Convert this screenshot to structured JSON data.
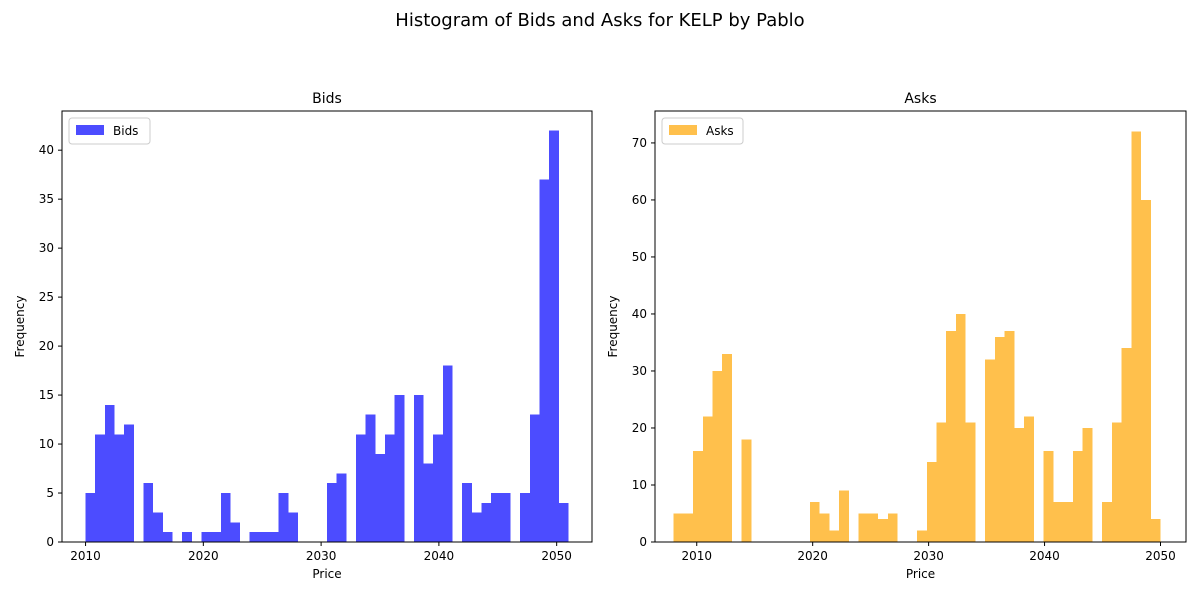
{
  "figure": {
    "suptitle": "Histogram of Bids and Asks for KELP by Pablo"
  },
  "chart_data": [
    {
      "type": "histogram",
      "title": "Bids",
      "xlabel": "Price",
      "ylabel": "Frequency",
      "legend": {
        "label": "Bids",
        "placement": "top-left"
      },
      "color": "#0000ff",
      "opacity": 0.7,
      "xlim": [
        2008,
        2053
      ],
      "ylim": [
        0,
        44
      ],
      "xticks": [
        2010,
        2020,
        2030,
        2040,
        2050
      ],
      "yticks": [
        0,
        5,
        10,
        15,
        20,
        25,
        30,
        35,
        40
      ],
      "bin_width": 0.82,
      "bins": [
        {
          "x": 2010.0,
          "count": 5
        },
        {
          "x": 2010.82,
          "count": 11
        },
        {
          "x": 2011.64,
          "count": 14
        },
        {
          "x": 2012.46,
          "count": 11
        },
        {
          "x": 2013.28,
          "count": 12
        },
        {
          "x": 2014.92,
          "count": 6
        },
        {
          "x": 2015.74,
          "count": 3
        },
        {
          "x": 2016.56,
          "count": 1
        },
        {
          "x": 2018.2,
          "count": 1
        },
        {
          "x": 2019.84,
          "count": 1
        },
        {
          "x": 2020.66,
          "count": 1
        },
        {
          "x": 2021.48,
          "count": 5
        },
        {
          "x": 2022.3,
          "count": 2
        },
        {
          "x": 2023.94,
          "count": 1
        },
        {
          "x": 2024.76,
          "count": 1
        },
        {
          "x": 2025.58,
          "count": 1
        },
        {
          "x": 2026.4,
          "count": 5
        },
        {
          "x": 2027.22,
          "count": 3
        },
        {
          "x": 2030.5,
          "count": 6
        },
        {
          "x": 2031.32,
          "count": 7
        },
        {
          "x": 2032.96,
          "count": 11
        },
        {
          "x": 2033.78,
          "count": 13
        },
        {
          "x": 2034.6,
          "count": 9
        },
        {
          "x": 2035.42,
          "count": 11
        },
        {
          "x": 2036.24,
          "count": 15
        },
        {
          "x": 2037.88,
          "count": 15
        },
        {
          "x": 2038.7,
          "count": 8
        },
        {
          "x": 2039.52,
          "count": 11
        },
        {
          "x": 2040.34,
          "count": 18
        },
        {
          "x": 2041.98,
          "count": 6
        },
        {
          "x": 2042.8,
          "count": 3
        },
        {
          "x": 2043.62,
          "count": 4
        },
        {
          "x": 2044.44,
          "count": 5
        },
        {
          "x": 2045.26,
          "count": 5
        },
        {
          "x": 2046.9,
          "count": 5
        },
        {
          "x": 2047.72,
          "count": 13
        },
        {
          "x": 2048.54,
          "count": 37
        },
        {
          "x": 2049.36,
          "count": 42
        },
        {
          "x": 2050.18,
          "count": 4
        }
      ]
    },
    {
      "type": "histogram",
      "title": "Asks",
      "xlabel": "Price",
      "ylabel": "Frequency",
      "legend": {
        "label": "Asks",
        "placement": "top-left"
      },
      "color": "#ffa500",
      "opacity": 0.7,
      "xlim": [
        2006.4,
        2052.2
      ],
      "ylim": [
        0,
        75.6
      ],
      "xticks": [
        2010,
        2020,
        2030,
        2040,
        2050
      ],
      "yticks": [
        0,
        10,
        20,
        30,
        40,
        50,
        60,
        70
      ],
      "bin_width": 0.84,
      "bins": [
        {
          "x": 2008.0,
          "count": 5
        },
        {
          "x": 2008.84,
          "count": 5
        },
        {
          "x": 2009.68,
          "count": 16
        },
        {
          "x": 2010.52,
          "count": 22
        },
        {
          "x": 2011.36,
          "count": 30
        },
        {
          "x": 2012.2,
          "count": 33
        },
        {
          "x": 2013.88,
          "count": 18
        },
        {
          "x": 2019.76,
          "count": 7
        },
        {
          "x": 2020.6,
          "count": 5
        },
        {
          "x": 2021.44,
          "count": 2
        },
        {
          "x": 2022.28,
          "count": 9
        },
        {
          "x": 2023.96,
          "count": 5
        },
        {
          "x": 2024.8,
          "count": 5
        },
        {
          "x": 2025.64,
          "count": 4
        },
        {
          "x": 2026.48,
          "count": 5
        },
        {
          "x": 2029.0,
          "count": 2
        },
        {
          "x": 2029.84,
          "count": 14
        },
        {
          "x": 2030.68,
          "count": 21
        },
        {
          "x": 2031.52,
          "count": 37
        },
        {
          "x": 2032.36,
          "count": 40
        },
        {
          "x": 2033.2,
          "count": 21
        },
        {
          "x": 2034.88,
          "count": 32
        },
        {
          "x": 2035.72,
          "count": 36
        },
        {
          "x": 2036.56,
          "count": 37
        },
        {
          "x": 2037.4,
          "count": 20
        },
        {
          "x": 2038.24,
          "count": 22
        },
        {
          "x": 2039.92,
          "count": 16
        },
        {
          "x": 2040.76,
          "count": 7
        },
        {
          "x": 2041.6,
          "count": 7
        },
        {
          "x": 2042.44,
          "count": 16
        },
        {
          "x": 2043.28,
          "count": 20
        },
        {
          "x": 2044.96,
          "count": 7
        },
        {
          "x": 2045.8,
          "count": 21
        },
        {
          "x": 2046.64,
          "count": 34
        },
        {
          "x": 2047.48,
          "count": 72
        },
        {
          "x": 2048.32,
          "count": 60
        },
        {
          "x": 2049.16,
          "count": 4
        }
      ]
    }
  ]
}
